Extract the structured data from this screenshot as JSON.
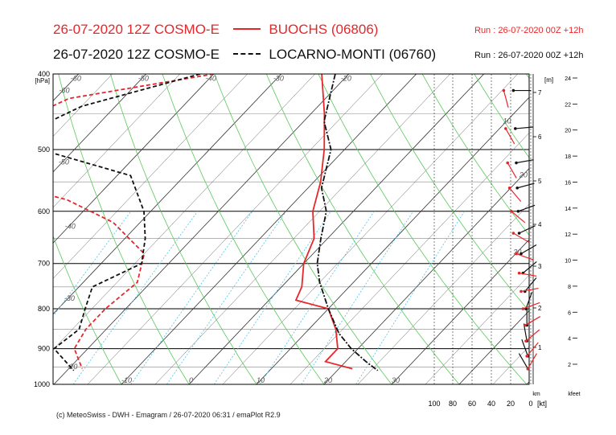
{
  "header": {
    "line1": {
      "model": "26-07-2020 12Z COSMO-E",
      "station": "BUOCHS (06806)",
      "run": "Run : 26-07-2020 00Z +12h",
      "color": "#e8262a"
    },
    "line2": {
      "model": "26-07-2020 12Z COSMO-E",
      "station": "LOCARNO-MONTI (06760)",
      "run": "Run : 26-07-2020 00Z +12h",
      "color": "#111111"
    }
  },
  "footer": "(c) MeteoSwiss - DWH - Emagram / 26-07-2020  06:31 / emaPlot R2.9",
  "chart_data": {
    "type": "line",
    "title": "",
    "pressure_unit": "[hPa]",
    "p_ticks": [
      400,
      500,
      600,
      700,
      800,
      900,
      1000
    ],
    "p_range": [
      400,
      1000
    ],
    "temperature_labels": [
      {
        "t": -60,
        "p": 410
      },
      {
        "t": -50,
        "p": 410
      },
      {
        "t": -40,
        "p": 410
      },
      {
        "t": -30,
        "p": 410
      },
      {
        "t": -20,
        "p": 410
      },
      {
        "t": -60,
        "p": 425
      },
      {
        "t": -50,
        "p": 525
      },
      {
        "t": -40,
        "p": 635
      },
      {
        "t": -30,
        "p": 785
      },
      {
        "t": -20,
        "p": 960
      },
      {
        "t": -10,
        "p": 1000
      },
      {
        "t": 0,
        "p": 1000
      },
      {
        "t": 10,
        "p": 1000
      },
      {
        "t": 20,
        "p": 1000
      },
      {
        "t": 30,
        "p": 1000
      },
      {
        "t": 10,
        "p": 465
      },
      {
        "t": 20,
        "p": 545
      },
      {
        "t": 30,
        "p": 685
      }
    ],
    "temperature_label_text": [
      "-60",
      "-50",
      "-40",
      "-30",
      "-20",
      "-60",
      "-50",
      "-40",
      "-30",
      "-20",
      "-10",
      "0",
      "10",
      "20",
      "30",
      "10",
      "20",
      "30"
    ],
    "km_axis": {
      "label": "[m]",
      "ticks": [
        "7",
        "6",
        "5",
        "4",
        "3",
        "2",
        "1"
      ],
      "unit_bottom": "km"
    },
    "kfeet_axis": {
      "ticks": [
        "24",
        "22",
        "20",
        "18",
        "16",
        "14",
        "12",
        "10",
        "8",
        "6",
        "4",
        "2"
      ],
      "unit_bottom": "kfeet"
    },
    "wind_axis": {
      "ticks": [
        "100",
        "80",
        "60",
        "40",
        "20",
        "0"
      ],
      "unit": "[kt]"
    },
    "series": [
      {
        "name": "BUOCHS (06806)",
        "kind": "temperature",
        "style": "solid",
        "color": "#e8262a",
        "points": [
          [
            400,
            -24
          ],
          [
            450,
            -18
          ],
          [
            500,
            -13
          ],
          [
            550,
            -9
          ],
          [
            600,
            -6
          ],
          [
            650,
            -2
          ],
          [
            700,
            0
          ],
          [
            750,
            3
          ],
          [
            780,
            4
          ],
          [
            800,
            10
          ],
          [
            850,
            14
          ],
          [
            900,
            17
          ],
          [
            935,
            17
          ],
          [
            955,
            22
          ]
        ]
      },
      {
        "name": "BUOCHS (06806)",
        "kind": "dewpoint",
        "style": "dashed",
        "color": "#e8262a",
        "points": [
          [
            400,
            -40
          ],
          [
            430,
            -58
          ],
          [
            460,
            -62
          ],
          [
            500,
            -72
          ],
          [
            540,
            -61
          ],
          [
            580,
            -44
          ],
          [
            620,
            -34
          ],
          [
            680,
            -25
          ],
          [
            740,
            -22
          ],
          [
            800,
            -23
          ],
          [
            850,
            -23
          ],
          [
            900,
            -22
          ],
          [
            955,
            -18
          ]
        ]
      },
      {
        "name": "LOCARNO-MONTI (06760)",
        "kind": "temperature",
        "style": "dashdot",
        "color": "#111111",
        "points": [
          [
            400,
            -22
          ],
          [
            460,
            -17
          ],
          [
            500,
            -12
          ],
          [
            560,
            -8
          ],
          [
            600,
            -4
          ],
          [
            650,
            -1
          ],
          [
            700,
            2
          ],
          [
            740,
            5
          ],
          [
            800,
            10
          ],
          [
            860,
            15
          ],
          [
            900,
            19
          ],
          [
            935,
            23
          ],
          [
            960,
            26
          ]
        ]
      },
      {
        "name": "LOCARNO-MONTI (06760)",
        "kind": "dewpoint",
        "style": "dashed",
        "color": "#111111",
        "points": [
          [
            400,
            -42
          ],
          [
            440,
            -55
          ],
          [
            480,
            -60
          ],
          [
            500,
            -55
          ],
          [
            540,
            -38
          ],
          [
            600,
            -31
          ],
          [
            650,
            -27
          ],
          [
            700,
            -24
          ],
          [
            750,
            -28
          ],
          [
            800,
            -26
          ],
          [
            850,
            -24
          ],
          [
            900,
            -25
          ],
          [
            960,
            -19
          ]
        ]
      }
    ],
    "wind": {
      "buochs": {
        "color": "#e8262a",
        "levels": [
          [
            420,
            345,
            28
          ],
          [
            470,
            330,
            26
          ],
          [
            520,
            330,
            24
          ],
          [
            560,
            320,
            22
          ],
          [
            600,
            310,
            20
          ],
          [
            640,
            300,
            18
          ],
          [
            680,
            290,
            15
          ],
          [
            720,
            280,
            12
          ],
          [
            760,
            260,
            10
          ],
          [
            800,
            250,
            8
          ],
          [
            840,
            240,
            6
          ],
          [
            880,
            230,
            5
          ],
          [
            920,
            220,
            4
          ],
          [
            955,
            210,
            3
          ]
        ]
      },
      "locarno": {
        "color": "#111111",
        "levels": [
          [
            420,
            270,
            18
          ],
          [
            470,
            265,
            16
          ],
          [
            520,
            260,
            15
          ],
          [
            560,
            255,
            14
          ],
          [
            600,
            250,
            13
          ],
          [
            640,
            245,
            12
          ],
          [
            680,
            240,
            10
          ],
          [
            720,
            230,
            8
          ],
          [
            760,
            220,
            6
          ],
          [
            800,
            200,
            5
          ],
          [
            840,
            180,
            4
          ],
          [
            880,
            170,
            4
          ],
          [
            920,
            160,
            3
          ],
          [
            955,
            150,
            3
          ]
        ]
      }
    }
  }
}
